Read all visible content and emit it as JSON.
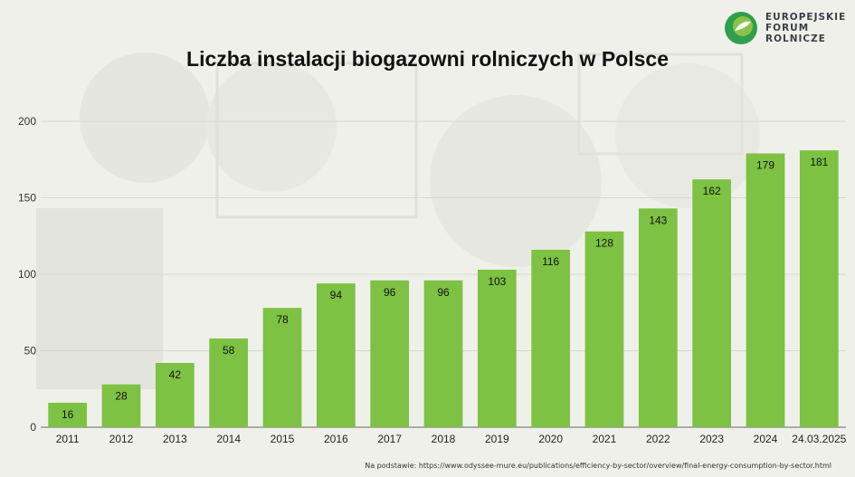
{
  "logo": {
    "line1": "EUROPEJSKIE",
    "line2": "FORUM",
    "line3": "ROLNICZE"
  },
  "source": "Na podstawie: https://www.odyssee-mure.eu/publications/efficiency-by-sector/overview/final-energy-consumption-by-sector.html",
  "colors": {
    "bar": "#7dc242",
    "grid": "#d8d8d2",
    "axis": "#666666",
    "logo_green": "#2f9f4e"
  },
  "chart_data": {
    "type": "bar",
    "title": "Liczba instalacji biogazowni rolniczych w Polsce",
    "xlabel": "",
    "ylabel": "",
    "categories": [
      "2011",
      "2012",
      "2013",
      "2014",
      "2015",
      "2016",
      "2017",
      "2018",
      "2019",
      "2020",
      "2021",
      "2022",
      "2023",
      "2024",
      "24.03.2025"
    ],
    "values": [
      16,
      28,
      42,
      58,
      78,
      94,
      96,
      96,
      103,
      116,
      128,
      143,
      162,
      179,
      181
    ],
    "ylim": [
      0,
      200
    ],
    "yticks": [
      0,
      50,
      100,
      150,
      200
    ],
    "grid": true,
    "legend": "none"
  }
}
